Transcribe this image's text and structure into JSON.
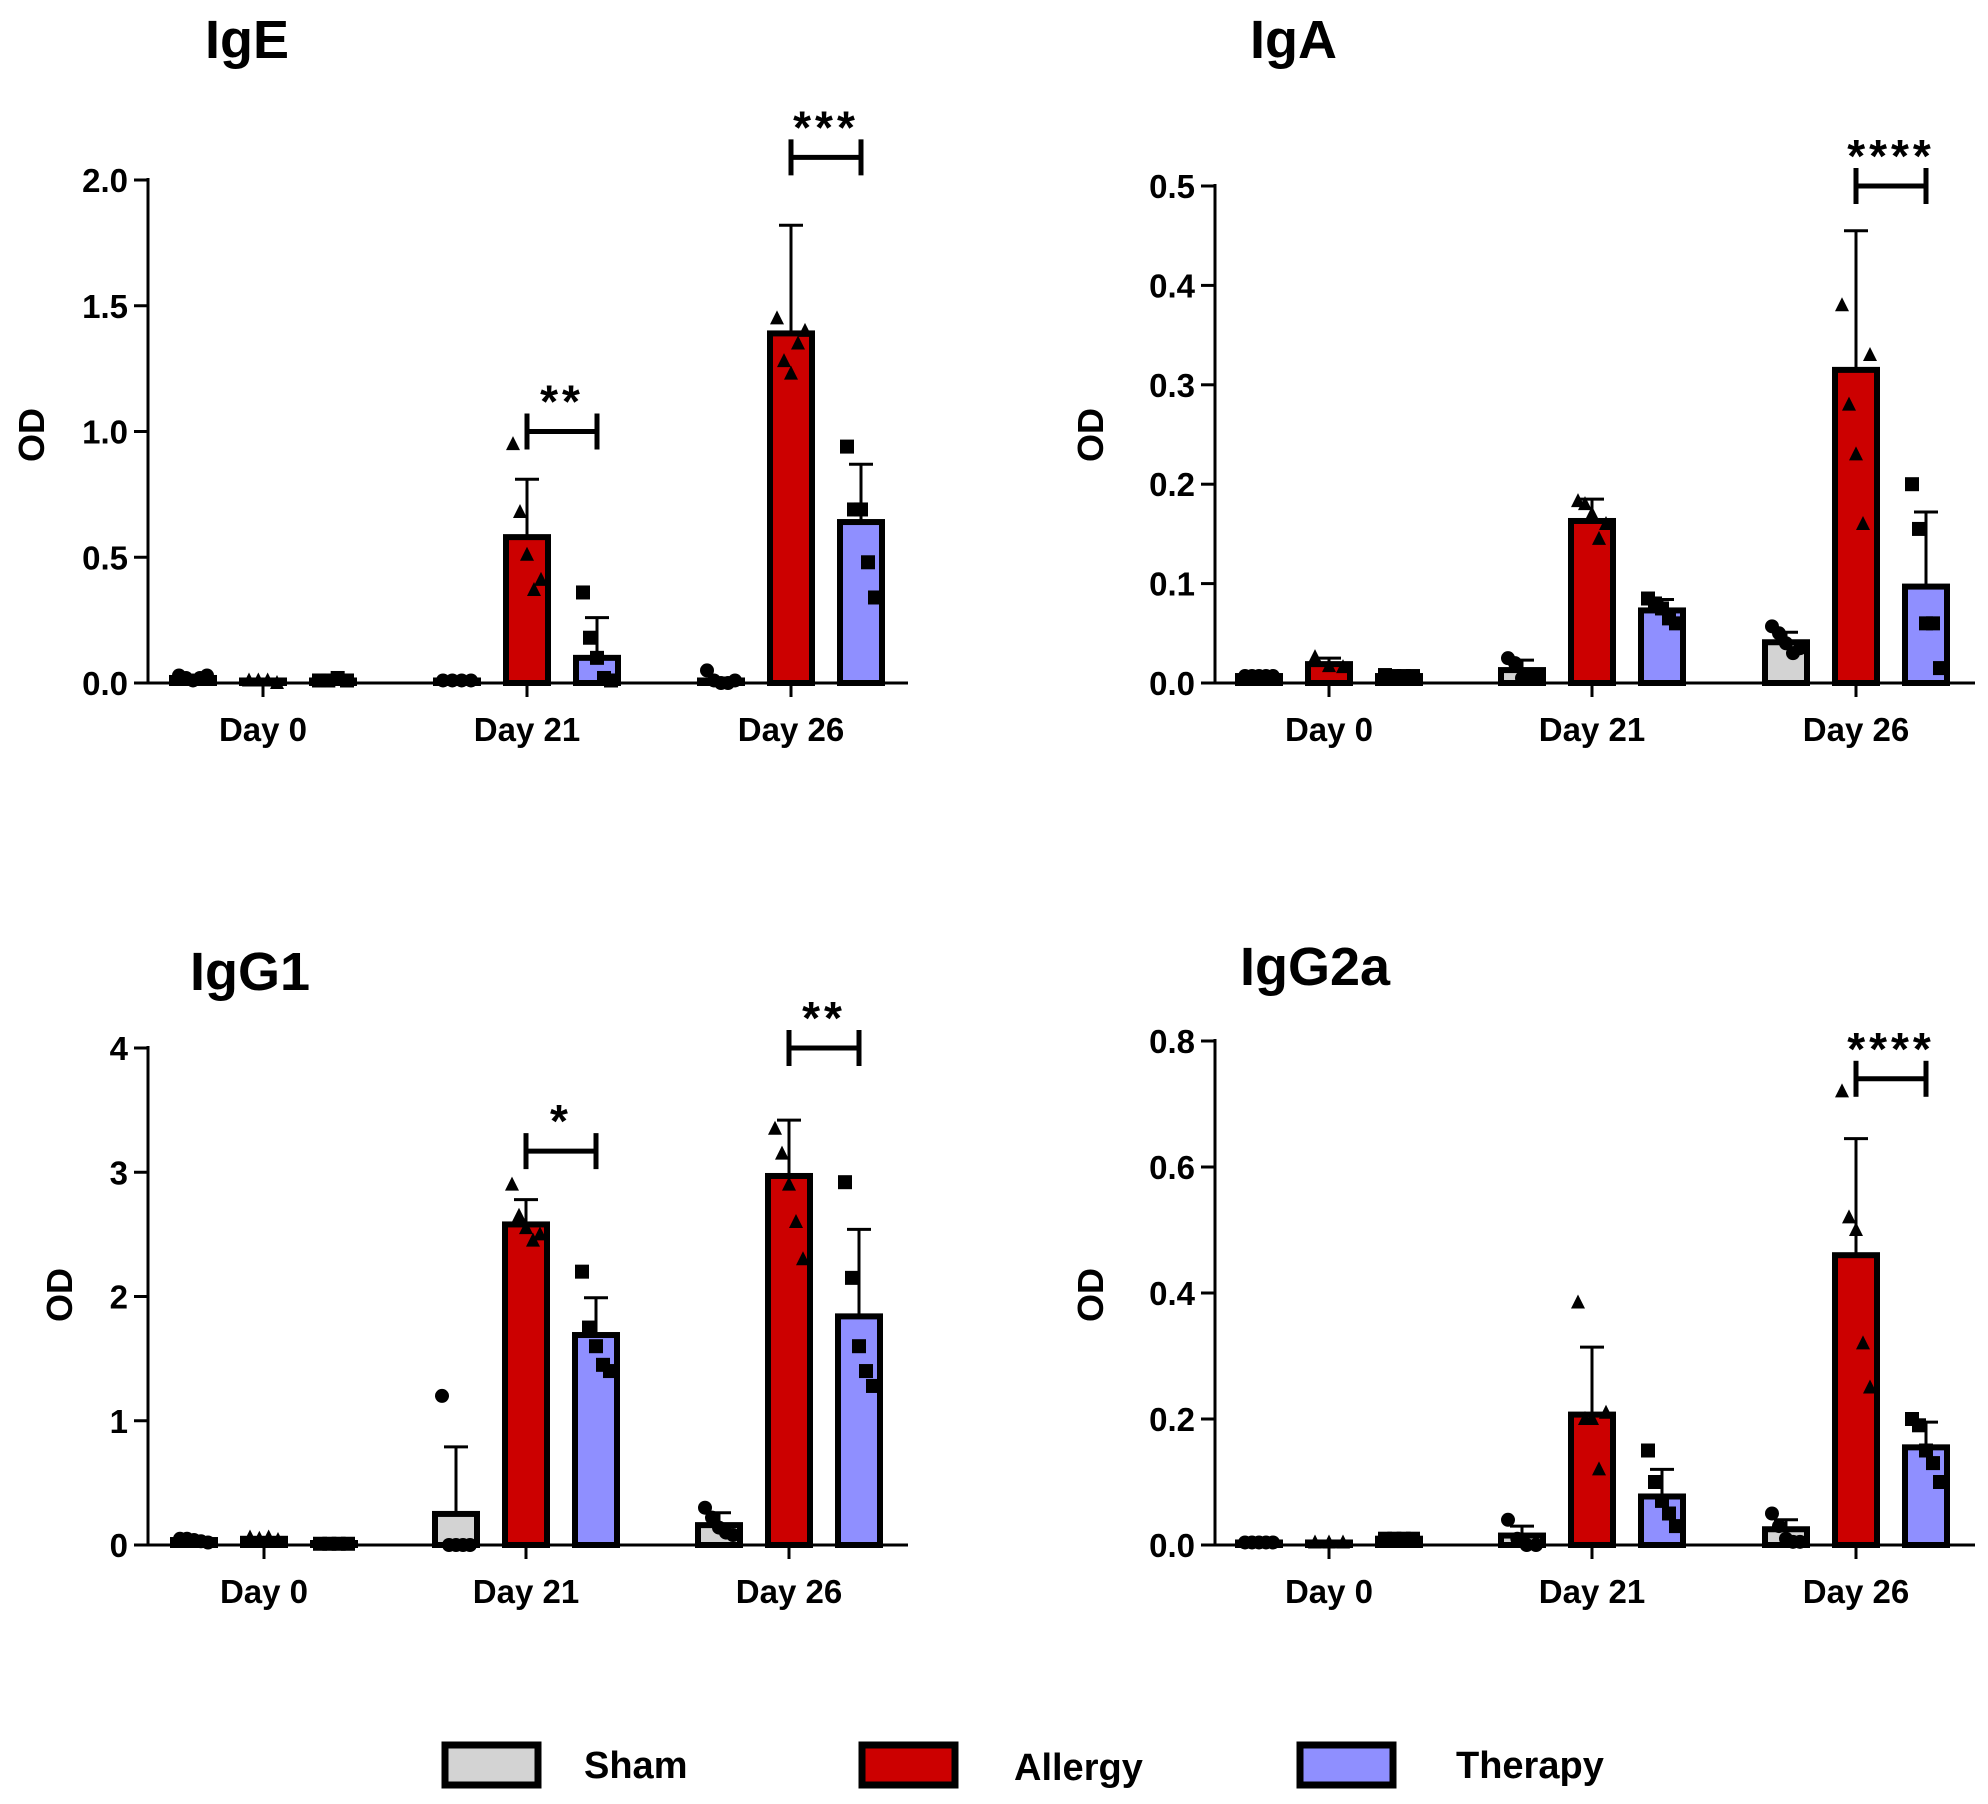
{
  "chart_data": [
    {
      "type": "bar",
      "title": "IgE",
      "ylabel": "OD",
      "xlabel": "",
      "ylim": [
        0,
        2.0
      ],
      "yticks": [
        0.0,
        0.5,
        1.0,
        1.5,
        2.0
      ],
      "ytick_labels": [
        "0.0",
        "0.5",
        "1.0",
        "1.5",
        "2.0"
      ],
      "categories": [
        "Day 0",
        "Day 21",
        "Day 26"
      ],
      "series": [
        {
          "name": "Sham",
          "values": [
            0.02,
            0.01,
            0.01
          ],
          "errors": [
            0.01,
            0.005,
            0.01
          ],
          "points": [
            [
              0.03,
              0.02,
              0.01,
              0.02,
              0.03
            ],
            [
              0.01,
              0.01,
              0.01,
              0.01
            ],
            [
              0.05,
              0.01,
              0.0,
              0.0,
              0.01
            ]
          ]
        },
        {
          "name": "Allergy",
          "values": [
            0.01,
            0.58,
            1.39
          ],
          "errors": [
            0.005,
            0.23,
            0.43
          ],
          "points": [
            [
              0.01,
              0.01,
              0.01,
              0.0
            ],
            [
              0.95,
              0.68,
              0.51,
              0.37,
              0.41
            ],
            [
              1.45,
              1.28,
              1.23,
              1.35,
              1.4
            ]
          ]
        },
        {
          "name": "Therapy",
          "values": [
            0.01,
            0.1,
            0.64
          ],
          "errors": [
            0.005,
            0.16,
            0.23
          ],
          "points": [
            [
              0.01,
              0.01,
              0.02,
              0.01
            ],
            [
              0.36,
              0.18,
              0.1,
              0.02,
              0.01
            ],
            [
              0.94,
              0.69,
              0.69,
              0.48,
              0.34
            ]
          ]
        }
      ],
      "significance": [
        {
          "category": "Day 21",
          "label": "**",
          "bar_at": 1.0
        },
        {
          "category": "Day 26",
          "label": "***",
          "bar_at": 2.09
        }
      ]
    },
    {
      "type": "bar",
      "title": "IgA",
      "ylabel": "OD",
      "xlabel": "",
      "ylim": [
        0,
        0.5
      ],
      "yticks": [
        0.0,
        0.1,
        0.2,
        0.3,
        0.4,
        0.5
      ],
      "ytick_labels": [
        "0.0",
        "0.1",
        "0.2",
        "0.3",
        "0.4",
        "0.5"
      ],
      "categories": [
        "Day 0",
        "Day 21",
        "Day 26"
      ],
      "series": [
        {
          "name": "Sham",
          "values": [
            0.007,
            0.013,
            0.041
          ],
          "errors": [
            0.002,
            0.01,
            0.01
          ],
          "points": [
            [
              0.007,
              0.007,
              0.007,
              0.007,
              0.007
            ],
            [
              0.025,
              0.02,
              0.005,
              0.005,
              0.005
            ],
            [
              0.057,
              0.05,
              0.04,
              0.03,
              0.035
            ]
          ]
        },
        {
          "name": "Allergy",
          "values": [
            0.019,
            0.163,
            0.315
          ],
          "errors": [
            0.006,
            0.022,
            0.14
          ],
          "points": [
            [
              0.026,
              0.017,
              0.016
            ],
            [
              0.183,
              0.18,
              0.17,
              0.145,
              0.16
            ],
            [
              0.38,
              0.28,
              0.23,
              0.16,
              0.33
            ]
          ]
        },
        {
          "name": "Therapy",
          "values": [
            0.007,
            0.073,
            0.097
          ],
          "errors": [
            0.002,
            0.011,
            0.075
          ],
          "points": [
            [
              0.008,
              0.007,
              0.007,
              0.007
            ],
            [
              0.085,
              0.08,
              0.075,
              0.065,
              0.06
            ],
            [
              0.2,
              0.155,
              0.06,
              0.06,
              0.015
            ]
          ]
        }
      ],
      "significance": [
        {
          "category": "Day 26",
          "label": "****",
          "bar_at": 0.5
        }
      ]
    },
    {
      "type": "bar",
      "title": "IgG1",
      "ylabel": "OD",
      "xlabel": "",
      "ylim": [
        0,
        4
      ],
      "yticks": [
        0,
        1,
        2,
        3,
        4
      ],
      "ytick_labels": [
        "0",
        "1",
        "2",
        "3",
        "4"
      ],
      "categories": [
        "Day 0",
        "Day 21",
        "Day 26"
      ],
      "series": [
        {
          "name": "Sham",
          "values": [
            0.04,
            0.25,
            0.16
          ],
          "errors": [
            0.01,
            0.54,
            0.1
          ],
          "points": [
            [
              0.05,
              0.05,
              0.04,
              0.03,
              0.02
            ],
            [
              1.2,
              0.0,
              0.0,
              0.0,
              0.0
            ],
            [
              0.3,
              0.22,
              0.14,
              0.1,
              0.08
            ]
          ]
        },
        {
          "name": "Allergy",
          "values": [
            0.05,
            2.58,
            2.97
          ],
          "errors": [
            0.01,
            0.2,
            0.45
          ],
          "points": [
            [
              0.06,
              0.05,
              0.06,
              0.04
            ],
            [
              2.9,
              2.65,
              2.55,
              2.45,
              2.5
            ],
            [
              3.35,
              3.15,
              2.9,
              2.6,
              2.3
            ]
          ]
        },
        {
          "name": "Therapy",
          "values": [
            0.01,
            1.69,
            1.84
          ],
          "errors": [
            0.005,
            0.3,
            0.7
          ],
          "points": [
            [
              0.01,
              0.01,
              0.01,
              0.01
            ],
            [
              2.2,
              1.75,
              1.6,
              1.45,
              1.4
            ],
            [
              2.92,
              2.15,
              1.6,
              1.4,
              1.28
            ]
          ]
        }
      ],
      "significance": [
        {
          "category": "Day 21",
          "label": "*",
          "bar_at": 3.17
        },
        {
          "category": "Day 26",
          "label": "**",
          "bar_at": 4.0
        }
      ]
    },
    {
      "type": "bar",
      "title": "IgG2a",
      "ylabel": "OD",
      "xlabel": "",
      "ylim": [
        0,
        0.8
      ],
      "yticks": [
        0.0,
        0.2,
        0.4,
        0.6,
        0.8
      ],
      "ytick_labels": [
        "0.0",
        "0.2",
        "0.4",
        "0.6",
        "0.8"
      ],
      "categories": [
        "Day 0",
        "Day 21",
        "Day 26"
      ],
      "series": [
        {
          "name": "Sham",
          "values": [
            0.004,
            0.015,
            0.025
          ],
          "errors": [
            0.002,
            0.015,
            0.015
          ],
          "points": [
            [
              0.004,
              0.004,
              0.004,
              0.004,
              0.004
            ],
            [
              0.04,
              0.01,
              0.0,
              0.0
            ],
            [
              0.05,
              0.03,
              0.01,
              0.005,
              0.005
            ]
          ]
        },
        {
          "name": "Allergy",
          "values": [
            0.004,
            0.207,
            0.46
          ],
          "errors": [
            0.002,
            0.107,
            0.185
          ],
          "points": [
            [
              0.004,
              0.004,
              0.004
            ],
            [
              0.385,
              0.2,
              0.2,
              0.12,
              0.21
            ],
            [
              0.72,
              0.52,
              0.5,
              0.32,
              0.25
            ]
          ]
        },
        {
          "name": "Therapy",
          "values": [
            0.01,
            0.077,
            0.155
          ],
          "errors": [
            0.003,
            0.043,
            0.04
          ],
          "points": [
            [
              0.01,
              0.01,
              0.01,
              0.01
            ],
            [
              0.15,
              0.1,
              0.07,
              0.05,
              0.03
            ],
            [
              0.2,
              0.19,
              0.15,
              0.13,
              0.1
            ]
          ]
        }
      ],
      "significance": [
        {
          "category": "Day 26",
          "label": "****",
          "bar_at": 0.74
        }
      ]
    }
  ],
  "legend": [
    {
      "name": "Sham",
      "color": "#d3d3d3"
    },
    {
      "name": "Allergy",
      "color": "#cc0000"
    },
    {
      "name": "Therapy",
      "color": "#8f8fff"
    }
  ],
  "colors": {
    "Sham": "#d3d3d3",
    "Allergy": "#cc0000",
    "Therapy": "#8f8fff"
  },
  "markers": {
    "Sham": "circle",
    "Allergy": "triangle",
    "Therapy": "square"
  }
}
